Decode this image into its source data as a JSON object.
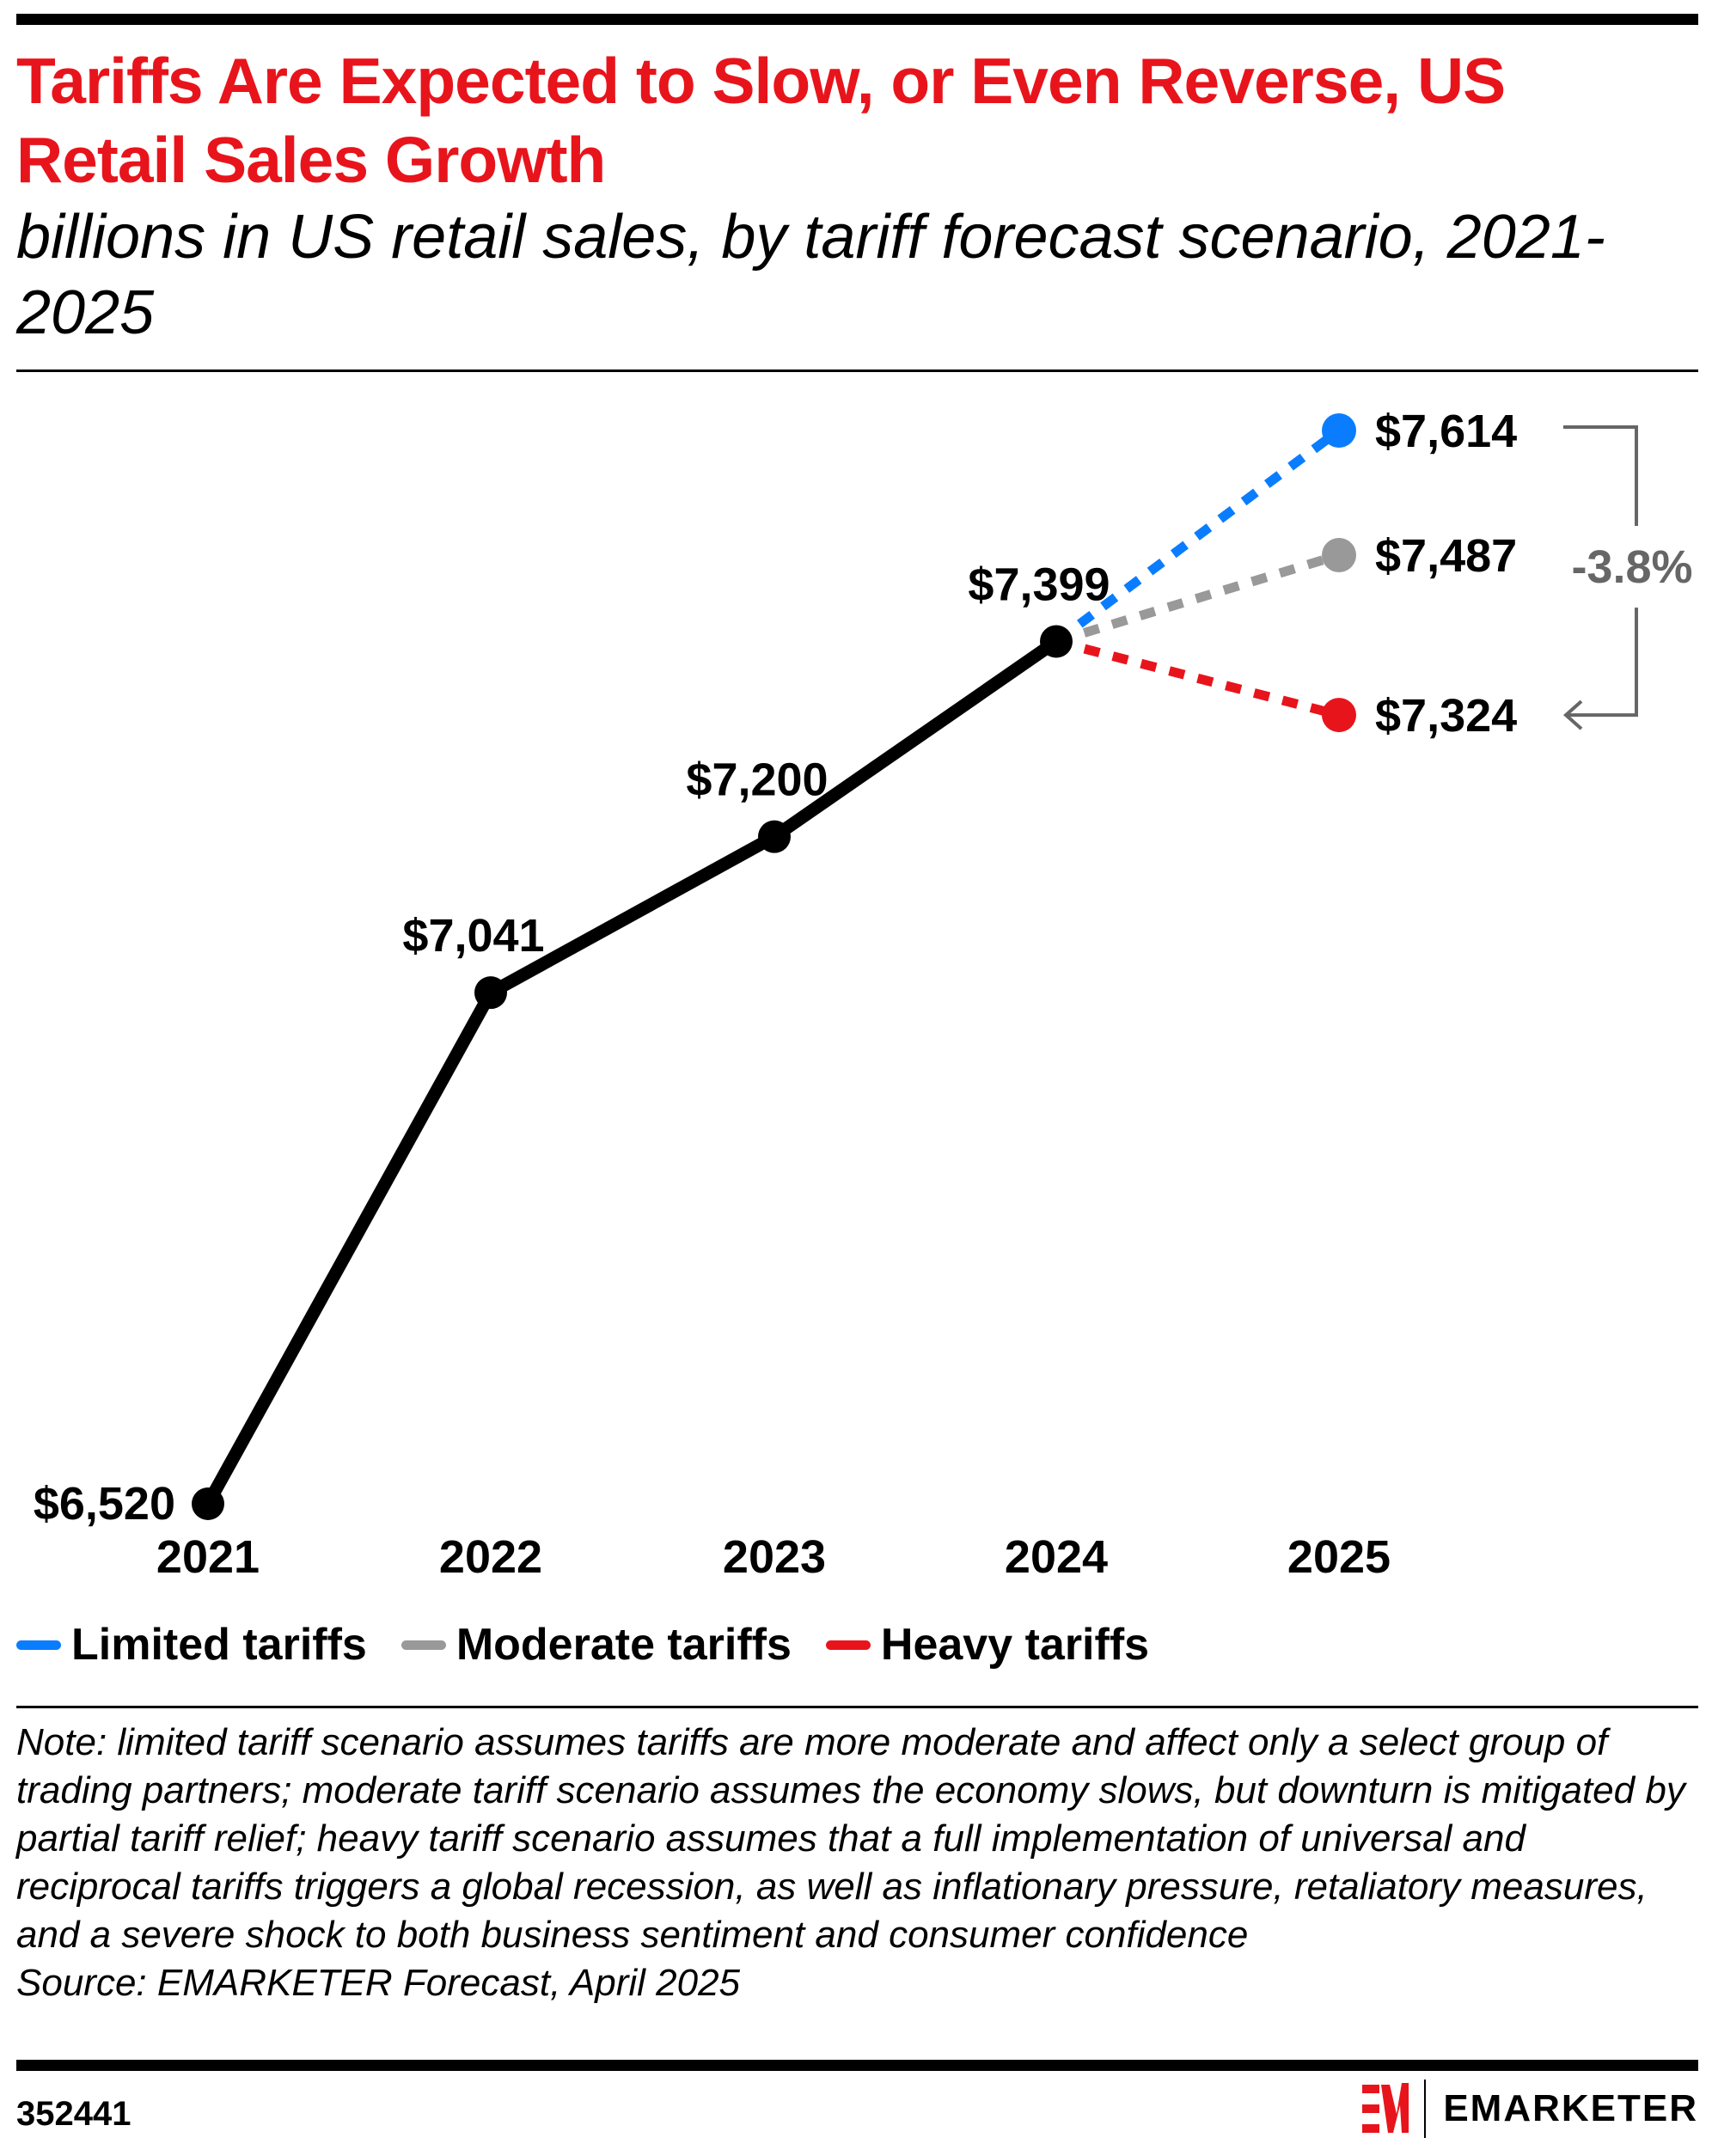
{
  "title": "Tariffs Are Expected to Slow, or Even Reverse, US Retail Sales Growth",
  "subtitle": "billions in US retail sales, by tariff forecast scenario, 2021-2025",
  "chart_data": {
    "type": "line",
    "categories": [
      "2021",
      "2022",
      "2023",
      "2024",
      "2025"
    ],
    "history": {
      "values": [
        6520,
        7041,
        7200,
        7399
      ],
      "labels": [
        "$6,520",
        "$7,041",
        "$7,200",
        "$7,399"
      ],
      "color": "#000000"
    },
    "series": [
      {
        "name": "Limited tariffs",
        "values": [
          null,
          null,
          null,
          7399,
          7614
        ],
        "label": "$7,614",
        "color": "#0a7dff"
      },
      {
        "name": "Moderate tariffs",
        "values": [
          null,
          null,
          null,
          7399,
          7487
        ],
        "label": "$7,487",
        "color": "#999999"
      },
      {
        "name": "Heavy tariffs",
        "values": [
          null,
          null,
          null,
          7399,
          7324
        ],
        "label": "$7,324",
        "color": "#e8141c"
      }
    ],
    "annotation": {
      "text": "-3.8%",
      "color": "#666666"
    },
    "grid": false,
    "legend": "bottom-left"
  },
  "note": "Note: limited tariff scenario assumes tariffs are more moderate and affect only a select group of trading partners; moderate tariff scenario assumes the economy slows, but downturn is mitigated by partial tariff relief; heavy tariff scenario assumes that a full implementation of universal and reciprocal tariffs triggers a global recession, as well as inflationary pressure, retaliatory measures, and a severe shock to both business sentiment and consumer confidence",
  "source": "Source: EMARKETER Forecast, April 2025",
  "chart_id": "352441",
  "brand": {
    "name": "EMARKETER",
    "accent": "#e8141c"
  }
}
